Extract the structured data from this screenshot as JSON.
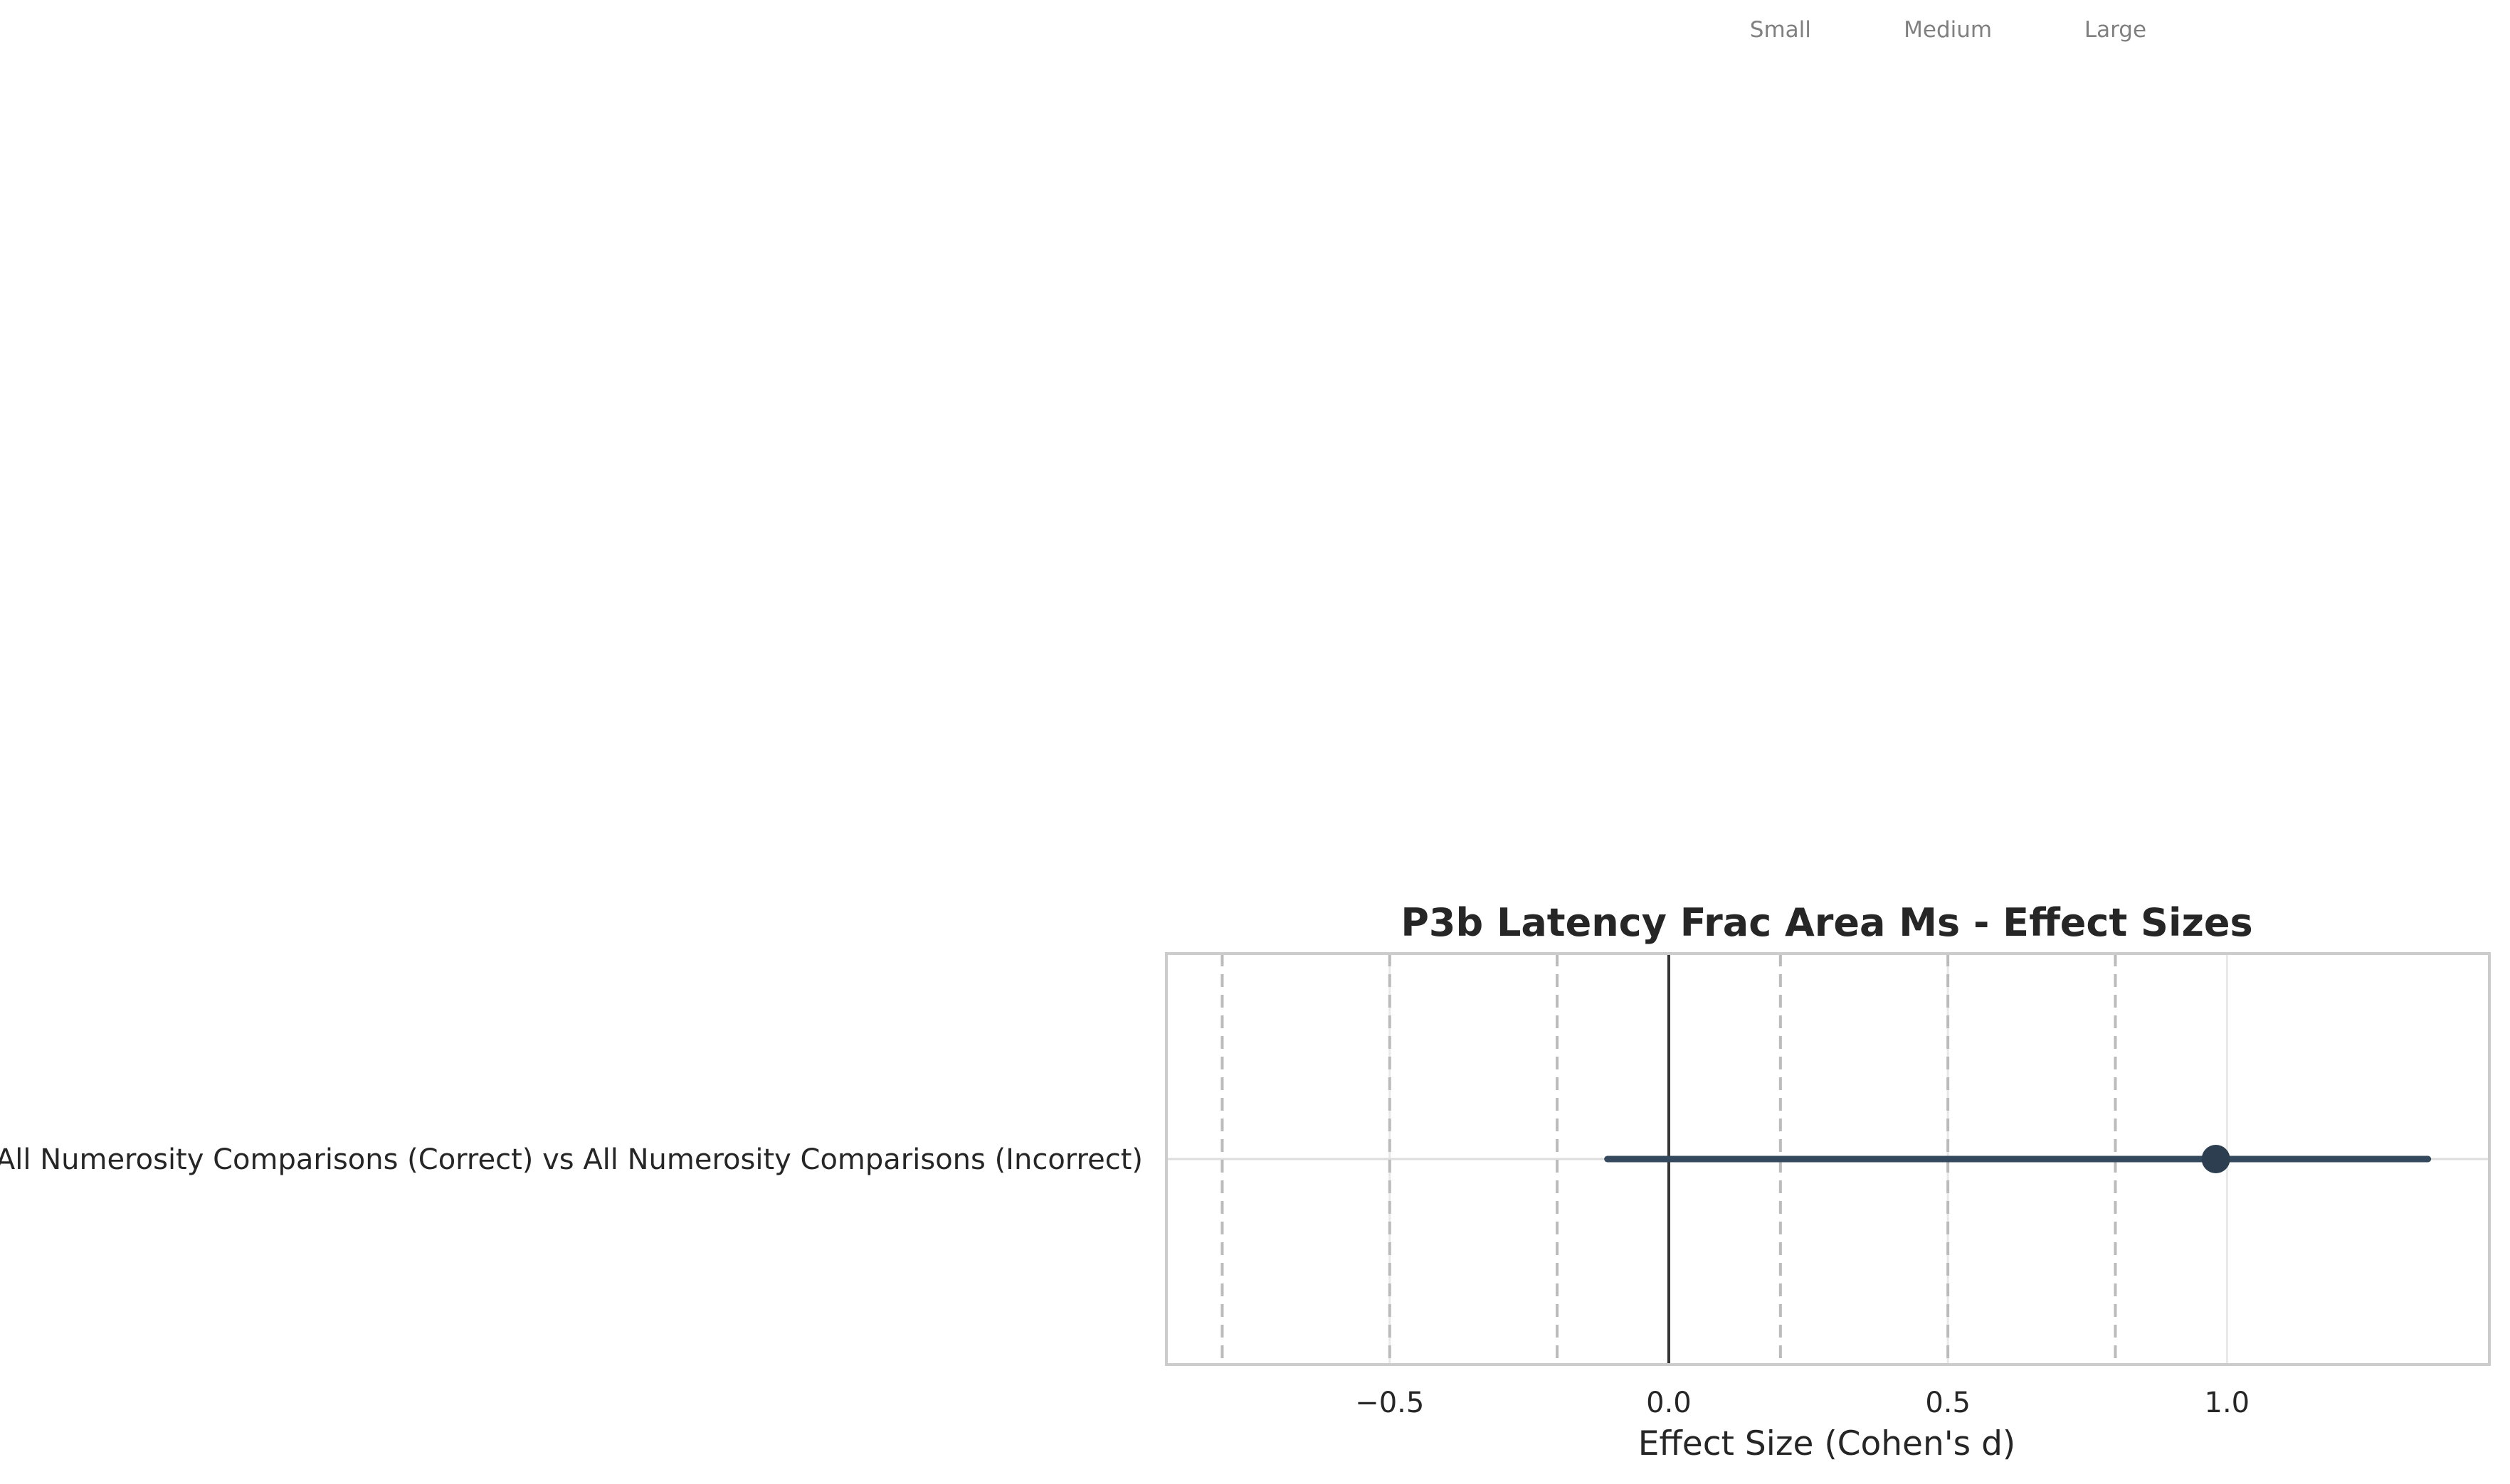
{
  "chart_data": {
    "type": "forest",
    "title": "P3b Latency Frac Area Ms - Effect Sizes",
    "xlabel": "Effect Size (Cohen's d)",
    "xlim": [
      -0.9,
      1.47
    ],
    "xticks": [
      -0.5,
      0.0,
      0.5,
      1.0
    ],
    "xtick_labels": [
      "−0.5",
      "0.0",
      "0.5",
      "1.0"
    ],
    "reference_lines": [
      {
        "value": 0.2,
        "label": "Small"
      },
      {
        "value": 0.5,
        "label": "Medium"
      },
      {
        "value": 0.8,
        "label": "Large"
      },
      {
        "value": -0.2,
        "label": ""
      },
      {
        "value": -0.5,
        "label": ""
      },
      {
        "value": -0.8,
        "label": ""
      }
    ],
    "zero_line": 0.0,
    "grid": true,
    "rows": [
      {
        "label": "All Numerosity Comparisons (Correct) vs All Numerosity Comparisons (Incorrect)",
        "estimate": 0.98,
        "ci_low": -0.11,
        "ci_high": 1.36
      }
    ],
    "colors": {
      "point": "#2c3e50",
      "ci": "#34495e",
      "reference": "#bbbbbb",
      "zero": "#333333",
      "frame": "#cccccc",
      "grid": "#e8e8e8"
    }
  }
}
